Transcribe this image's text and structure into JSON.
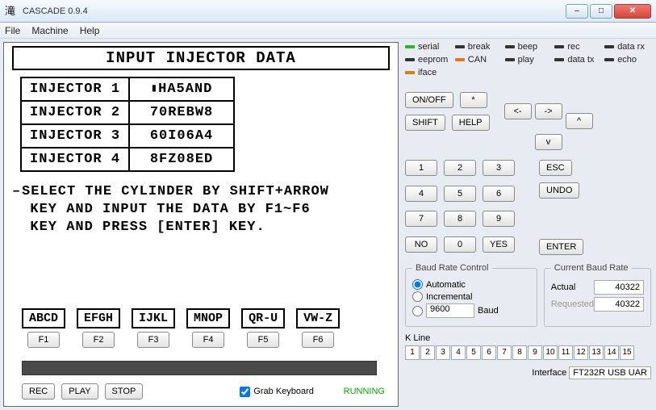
{
  "window": {
    "title": "CASCADE 0.9.4",
    "icon": "滝"
  },
  "menu": [
    "File",
    "Machine",
    "Help"
  ],
  "terminal": {
    "heading": "INPUT INJECTOR DATA",
    "injectors": [
      {
        "label": "INJECTOR 1",
        "value": "HA5AND",
        "cursor": true
      },
      {
        "label": "INJECTOR 2",
        "value": "70REBW8"
      },
      {
        "label": "INJECTOR 3",
        "value": "60I06A4"
      },
      {
        "label": "INJECTOR 4",
        "value": "8FZ08ED"
      }
    ],
    "instructions1": "SELECT THE CYLINDER BY SHIFT+ARROW",
    "instructions2": "KEY AND INPUT THE DATA BY F1~F6",
    "instructions3": "KEY AND PRESS [ENTER] KEY.",
    "fkeys": [
      {
        "label": "ABCD",
        "key": "F1"
      },
      {
        "label": "EFGH",
        "key": "F2"
      },
      {
        "label": "IJKL",
        "key": "F3"
      },
      {
        "label": "MNOP",
        "key": "F4"
      },
      {
        "label": "QR-U",
        "key": "F5"
      },
      {
        "label": "VW-Z",
        "key": "F6"
      }
    ]
  },
  "rec_controls": {
    "rec": "REC",
    "play": "PLAY",
    "stop": "STOP"
  },
  "grab": {
    "label": "Grab Keyboard",
    "checked": true
  },
  "run_status": "RUNNING",
  "run_status_color": "#0a0",
  "leds": [
    {
      "name": "serial",
      "color": "#1fbf1f"
    },
    {
      "name": "break",
      "color": "#333333"
    },
    {
      "name": "beep",
      "color": "#333333"
    },
    {
      "name": "rec",
      "color": "#333333"
    },
    {
      "name": "data rx",
      "color": "#333333"
    },
    {
      "name": "eeprom",
      "color": "#333333"
    },
    {
      "name": "CAN",
      "color": "#e07a1f"
    },
    {
      "name": "play",
      "color": "#333333"
    },
    {
      "name": "data tx",
      "color": "#333333"
    },
    {
      "name": "echo",
      "color": "#333333"
    },
    {
      "name": "iface",
      "color": "#e07a1f"
    }
  ],
  "ctrl_pad": {
    "onoff": "ON/OFF",
    "star": "*",
    "shift": "SHIFT",
    "help": "HELP",
    "left": "<-",
    "up": "^",
    "right": "->",
    "down": "v",
    "esc": "ESC",
    "undo": "UNDO",
    "enter": "ENTER",
    "no": "NO",
    "yes": "YES",
    "digits": [
      "1",
      "2",
      "3",
      "4",
      "5",
      "6",
      "7",
      "8",
      "9",
      "0"
    ]
  },
  "baud_control": {
    "legend": "Baud Rate Control",
    "mode": "Automatic",
    "opts": {
      "auto": "Automatic",
      "incr": "Incremental"
    },
    "manual_value": "9600",
    "baud_label": "Baud"
  },
  "current_baud": {
    "legend": "Current Baud Rate",
    "actual_label": "Actual",
    "actual": "40322",
    "requested_label": "Requested",
    "requested": "40322"
  },
  "kline": {
    "label": "K Line",
    "cells": [
      "1",
      "2",
      "3",
      "4",
      "5",
      "6",
      "7",
      "8",
      "9",
      "10",
      "11",
      "12",
      "13",
      "14",
      "15"
    ]
  },
  "interface": {
    "label": "Interface",
    "value": "FT232R USB UAR"
  }
}
